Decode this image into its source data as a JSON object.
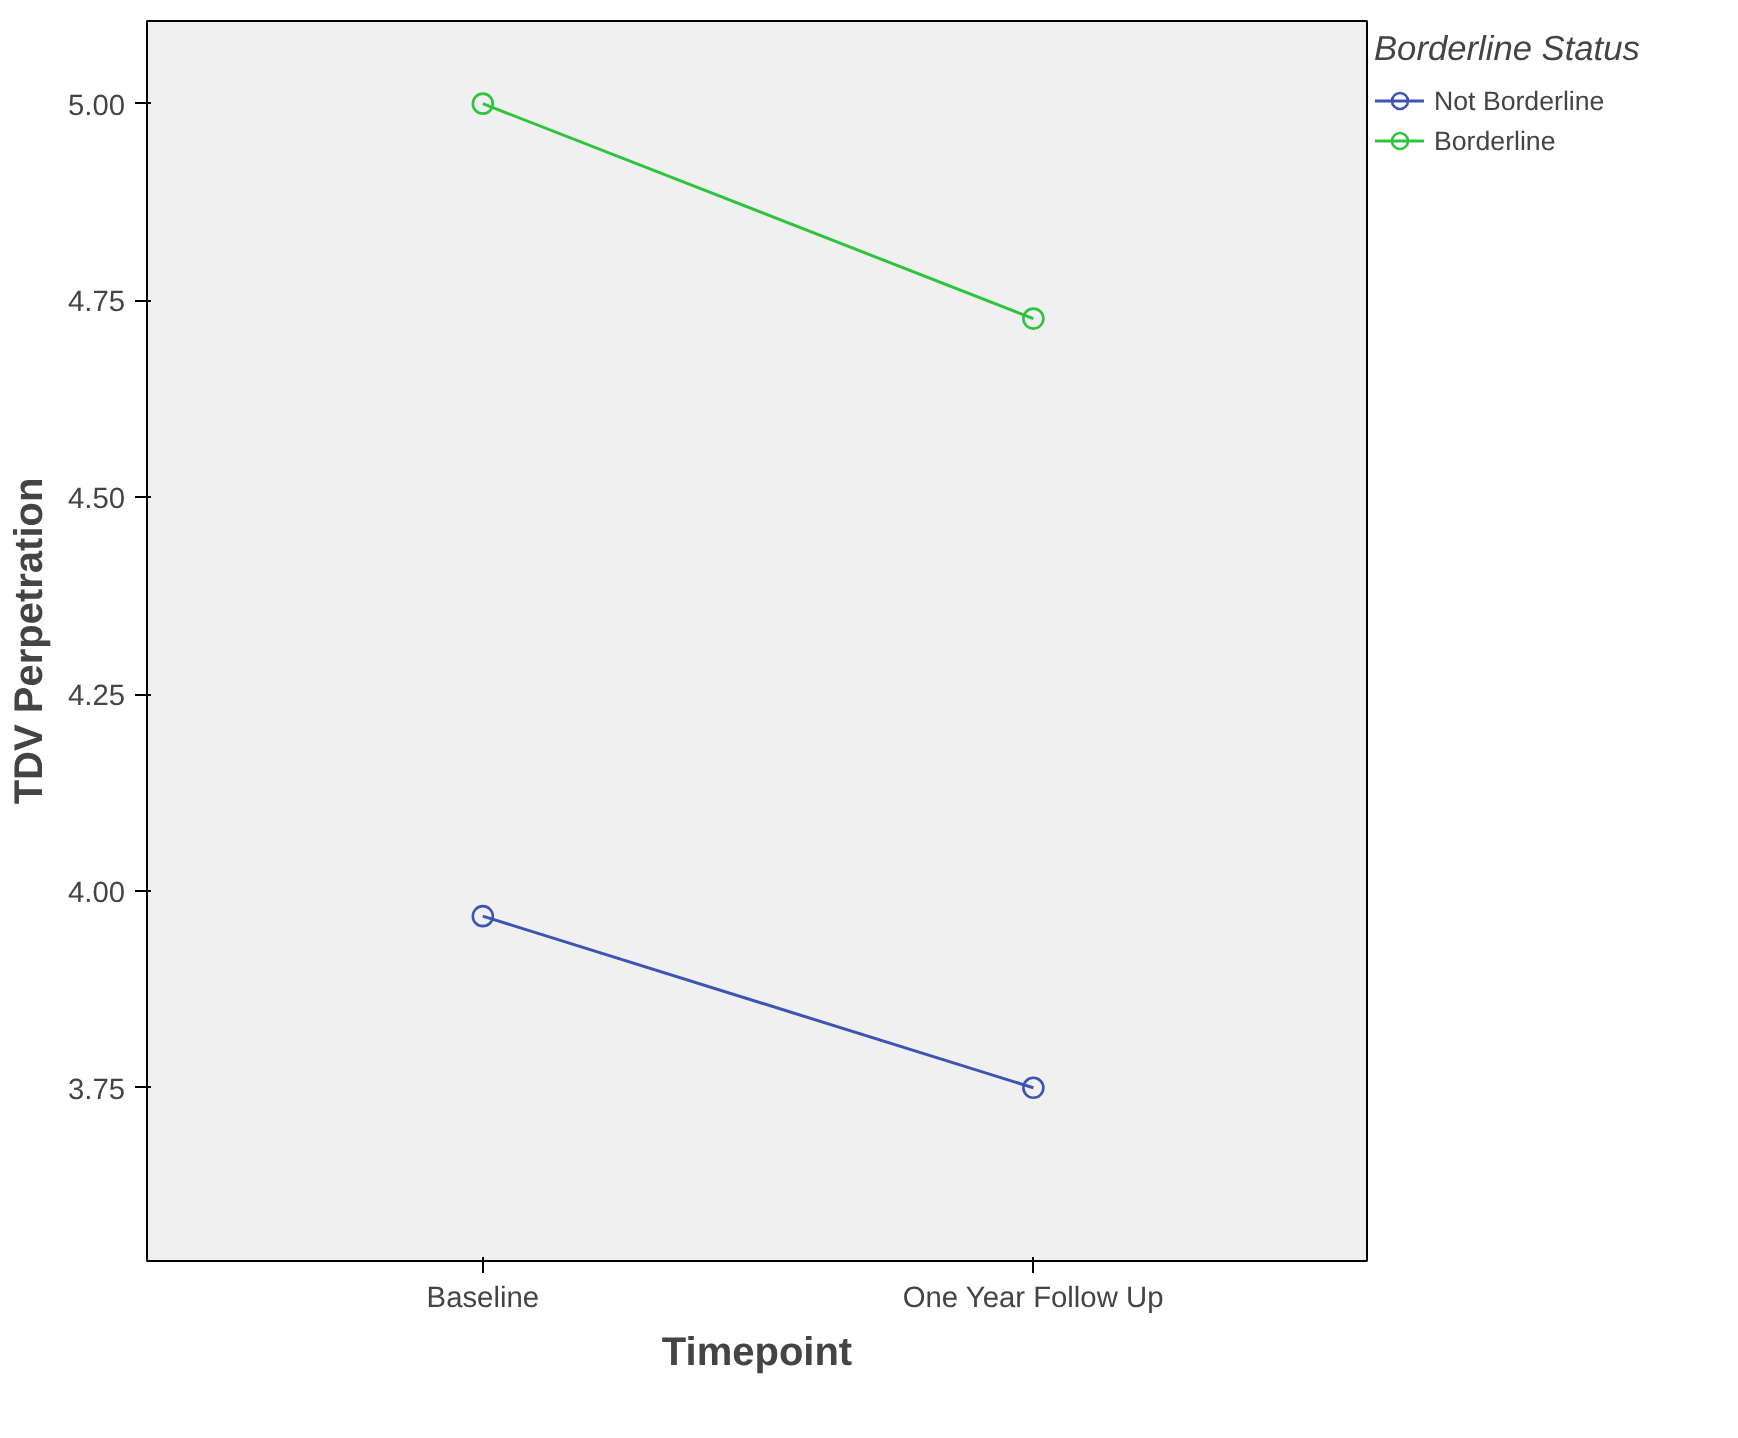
{
  "chart_data": {
    "type": "line",
    "xlabel": "Timepoint",
    "ylabel": "TDV Perpetration",
    "legend_title": "Borderline Status",
    "categories": [
      "Baseline",
      "One Year Follow Up"
    ],
    "series": [
      {
        "name": "Not Borderline",
        "color": "#3e54b4",
        "values": [
          3.968,
          3.75
        ]
      },
      {
        "name": "Borderline",
        "color": "#2ec43e",
        "values": [
          5.0,
          4.727
        ]
      }
    ],
    "ylim": [
      3.53,
      5.105
    ],
    "yticks": [
      {
        "value": 3.75,
        "label": "3.75"
      },
      {
        "value": 4.0,
        "label": "4.00"
      },
      {
        "value": 4.25,
        "label": "4.25"
      },
      {
        "value": 4.5,
        "label": "4.50"
      },
      {
        "value": 4.75,
        "label": "4.75"
      },
      {
        "value": 5.0,
        "label": "5.00"
      }
    ],
    "grid": false,
    "legend": "right",
    "marker": "circle",
    "line_style": "solid"
  }
}
